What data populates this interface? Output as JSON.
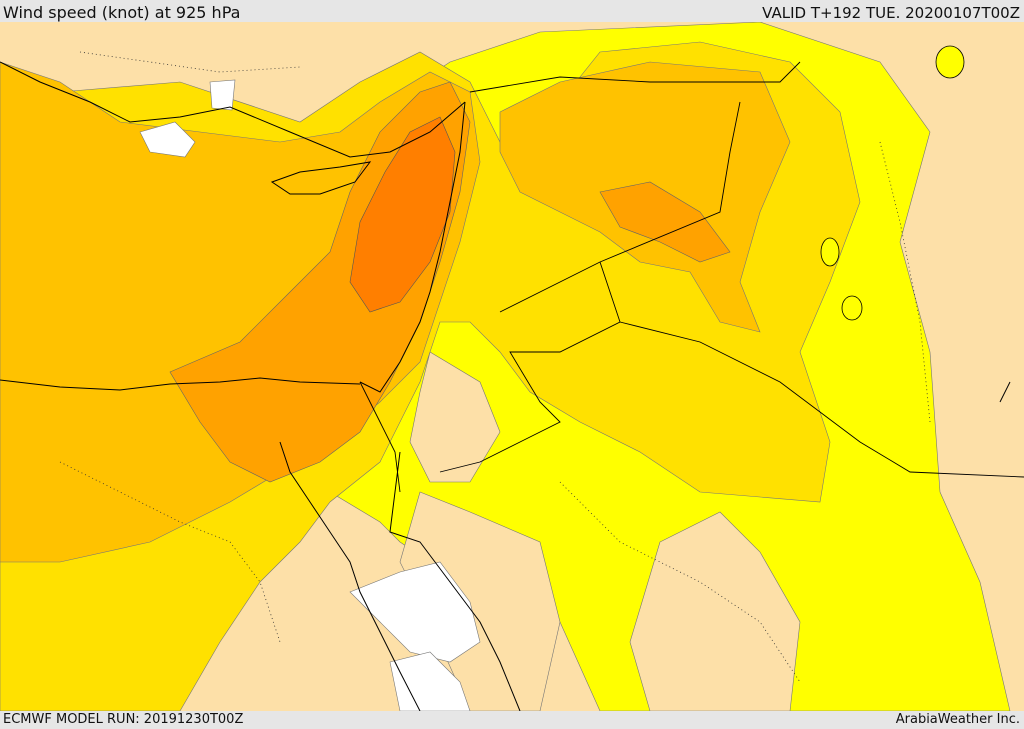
{
  "header": {
    "title": "Wind speed (knot) at 925 hPa",
    "valid": "VALID T+192 TUE. 20200107T00Z"
  },
  "footer": {
    "model_run": "ECMWF MODEL RUN: 20191230T00Z",
    "credit": "ArabiaWeather Inc."
  },
  "map": {
    "field": "wind speed",
    "level": "925 hPa",
    "colors": {
      "calm_white": "#ffffff",
      "light_tan": "#fde0a8",
      "light_yellow": "#ffff55",
      "yellow": "#ffff00",
      "gold": "#ffe100",
      "amber": "#ffc200",
      "orange": "#ffa200",
      "dark_orange": "#ff7f00",
      "contour": "#555555",
      "border": "#000000"
    }
  }
}
